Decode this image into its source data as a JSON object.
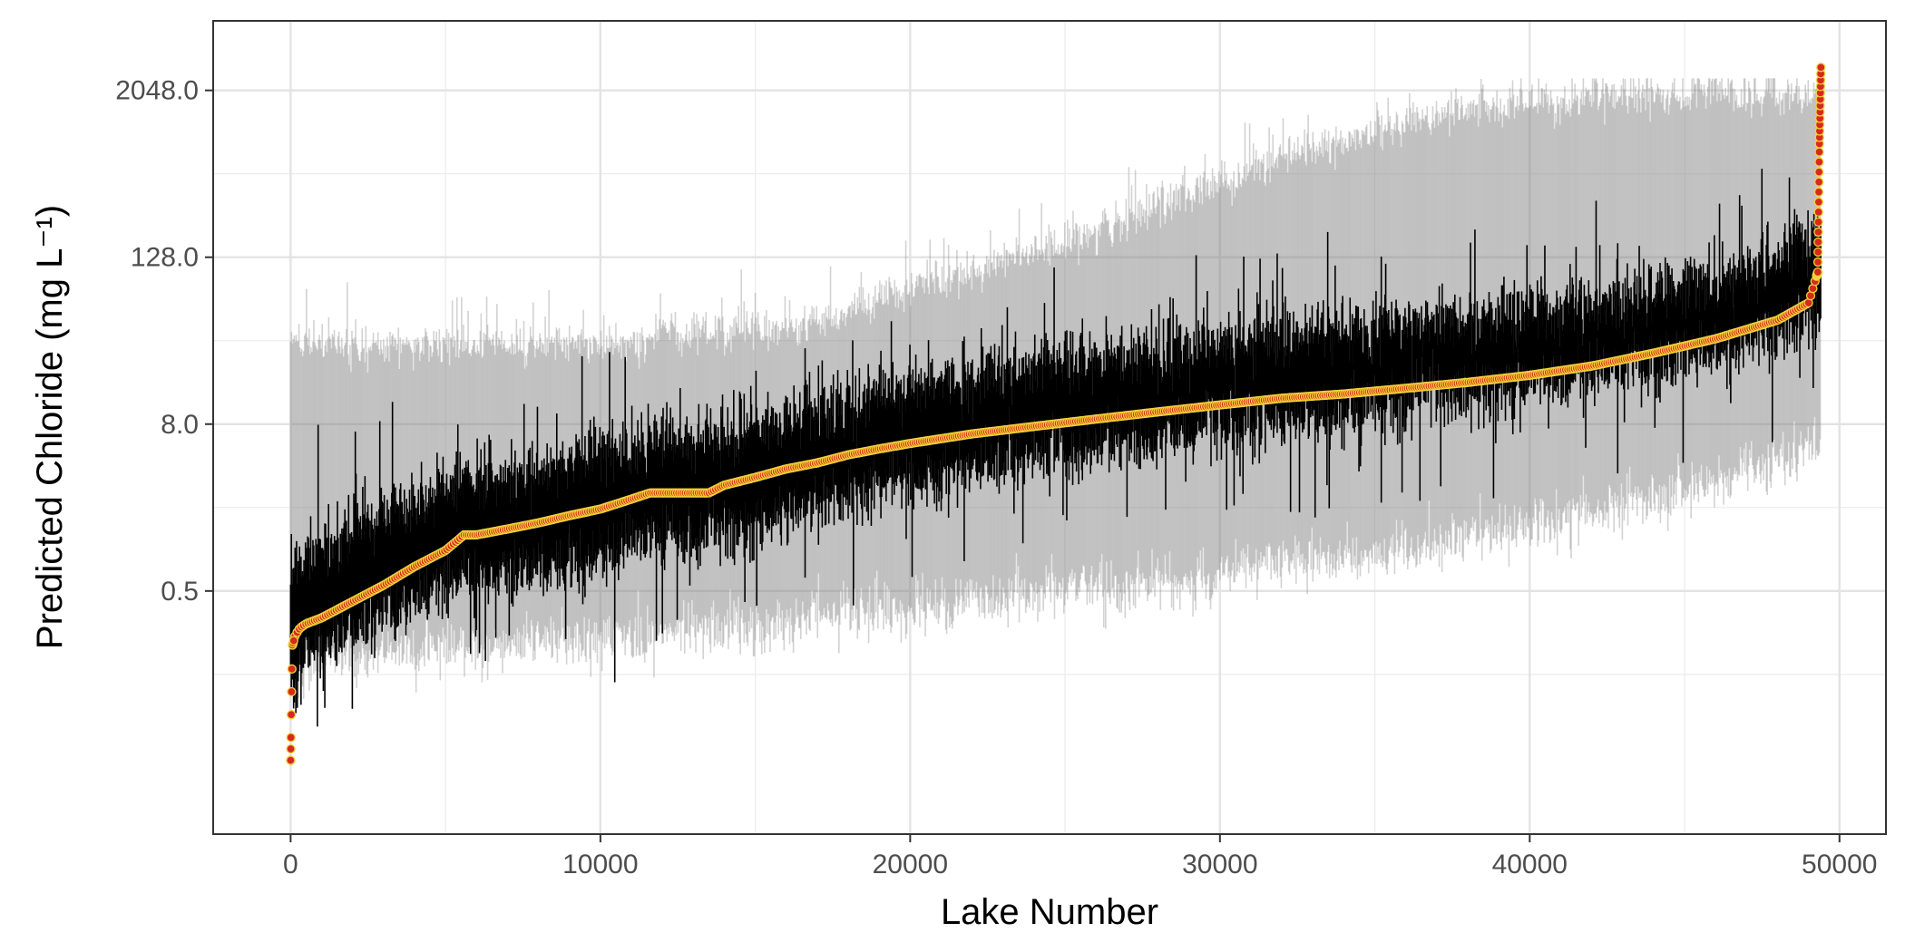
{
  "chart_data": {
    "type": "scatter",
    "title": "",
    "xlabel": "Lake Number",
    "ylabel": "Predicted Chloride (mg L⁻¹)",
    "x_range": [
      -2500,
      51500
    ],
    "y_scale": "log2",
    "y_range": [
      0.0088,
      6500
    ],
    "x_ticks": [
      0,
      10000,
      20000,
      30000,
      40000,
      50000
    ],
    "x_tick_labels": [
      "0",
      "10000",
      "20000",
      "30000",
      "40000",
      "50000"
    ],
    "y_ticks": [
      0.5,
      8.0,
      128.0,
      2048.0
    ],
    "y_tick_labels": [
      "0.5",
      "8.0",
      "128.0",
      "2048.0"
    ],
    "y_minor_ticks": [
      0.125,
      2,
      32,
      512
    ],
    "grid": true,
    "n_lakes": 49400,
    "series": [
      {
        "role": "prediction_interval_95",
        "color": "#7f7f7f",
        "x": [
          0,
          500,
          1000,
          2000,
          3000,
          4000,
          5000,
          5600,
          6000,
          7000,
          8000,
          9000,
          10000,
          11000,
          11500,
          12000,
          13000,
          13500,
          14000,
          15000,
          16000,
          17000,
          18000,
          19000,
          20000,
          22000,
          24000,
          26000,
          28000,
          30000,
          32000,
          34000,
          36000,
          38000,
          40000,
          42000,
          44000,
          46000,
          48000,
          49000,
          49400
        ],
        "lower": [
          0.12,
          0.15,
          0.16,
          0.17,
          0.18,
          0.19,
          0.2,
          0.2,
          0.21,
          0.21,
          0.22,
          0.22,
          0.23,
          0.24,
          0.24,
          0.25,
          0.25,
          0.26,
          0.27,
          0.28,
          0.3,
          0.32,
          0.34,
          0.36,
          0.38,
          0.42,
          0.47,
          0.53,
          0.6,
          0.68,
          0.78,
          0.9,
          1.05,
          1.25,
          1.5,
          1.85,
          2.3,
          3.0,
          4.2,
          5.2,
          6.0
        ],
        "upper": [
          30,
          30,
          30,
          30,
          30,
          30,
          30,
          30,
          30,
          30,
          30,
          30,
          30,
          30,
          30,
          38,
          38,
          38,
          38,
          38,
          40,
          45,
          50,
          60,
          75,
          100,
          140,
          200,
          300,
          450,
          650,
          900,
          1200,
          1500,
          1700,
          1850,
          1900,
          1950,
          1950,
          1950,
          1950
        ]
      },
      {
        "role": "credible_interval_50",
        "color": "#000000",
        "x": [
          0,
          500,
          1000,
          2000,
          3000,
          4000,
          5000,
          5600,
          6000,
          7000,
          8000,
          9000,
          10000,
          11000,
          11500,
          12000,
          13000,
          13500,
          14000,
          15000,
          16000,
          17000,
          18000,
          19000,
          20000,
          22000,
          24000,
          26000,
          28000,
          30000,
          32000,
          34000,
          36000,
          38000,
          40000,
          42000,
          44000,
          46000,
          48000,
          49000,
          49400
        ],
        "lower": [
          0.1,
          0.18,
          0.2,
          0.27,
          0.34,
          0.42,
          0.55,
          0.65,
          0.65,
          0.68,
          0.75,
          0.85,
          0.95,
          1.1,
          1.2,
          1.2,
          1.2,
          1.2,
          1.3,
          1.5,
          1.8,
          2.1,
          2.5,
          2.8,
          3.2,
          4.0,
          4.8,
          5.6,
          6.5,
          7.5,
          8.8,
          10.0,
          11.5,
          13.0,
          15.0,
          18.0,
          22.0,
          26.0,
          35.0,
          45.0,
          50.0
        ],
        "upper": [
          0.6,
          0.9,
          1.1,
          1.4,
          1.8,
          2.3,
          2.9,
          3.3,
          3.3,
          3.4,
          3.8,
          4.3,
          5.0,
          5.8,
          6.2,
          6.2,
          6.2,
          6.2,
          6.8,
          7.5,
          8.5,
          10.0,
          11.5,
          13.0,
          15.0,
          18.0,
          21.0,
          24.0,
          27.0,
          31.0,
          35.0,
          38.0,
          42.0,
          46.0,
          52.0,
          60.0,
          72.0,
          90.0,
          120.0,
          160.0,
          220.0
        ]
      },
      {
        "role": "median_prediction",
        "color": "#d62a1c",
        "outline_color": "#f2d33b",
        "x": [
          0,
          50,
          150,
          300,
          500,
          1000,
          2000,
          3000,
          4000,
          5000,
          5600,
          6000,
          7000,
          8000,
          9000,
          10000,
          11000,
          11600,
          12000,
          13000,
          13500,
          14000,
          15000,
          16000,
          17000,
          18000,
          19000,
          20000,
          22000,
          24000,
          26000,
          28000,
          30000,
          32000,
          34000,
          36000,
          38000,
          40000,
          42000,
          44000,
          46000,
          48000,
          49000,
          49300,
          49350,
          49400
        ],
        "values": [
          0.03,
          0.2,
          0.24,
          0.27,
          0.29,
          0.32,
          0.42,
          0.55,
          0.75,
          0.98,
          1.27,
          1.27,
          1.4,
          1.55,
          1.75,
          1.95,
          2.3,
          2.55,
          2.55,
          2.55,
          2.55,
          2.9,
          3.3,
          3.8,
          4.2,
          4.8,
          5.3,
          5.8,
          6.8,
          7.7,
          8.7,
          9.8,
          11.0,
          12.3,
          13.2,
          14.5,
          16.0,
          18.0,
          21.0,
          26.0,
          33.0,
          45.0,
          60.0,
          100.0,
          800.0,
          3000.0
        ]
      }
    ]
  }
}
